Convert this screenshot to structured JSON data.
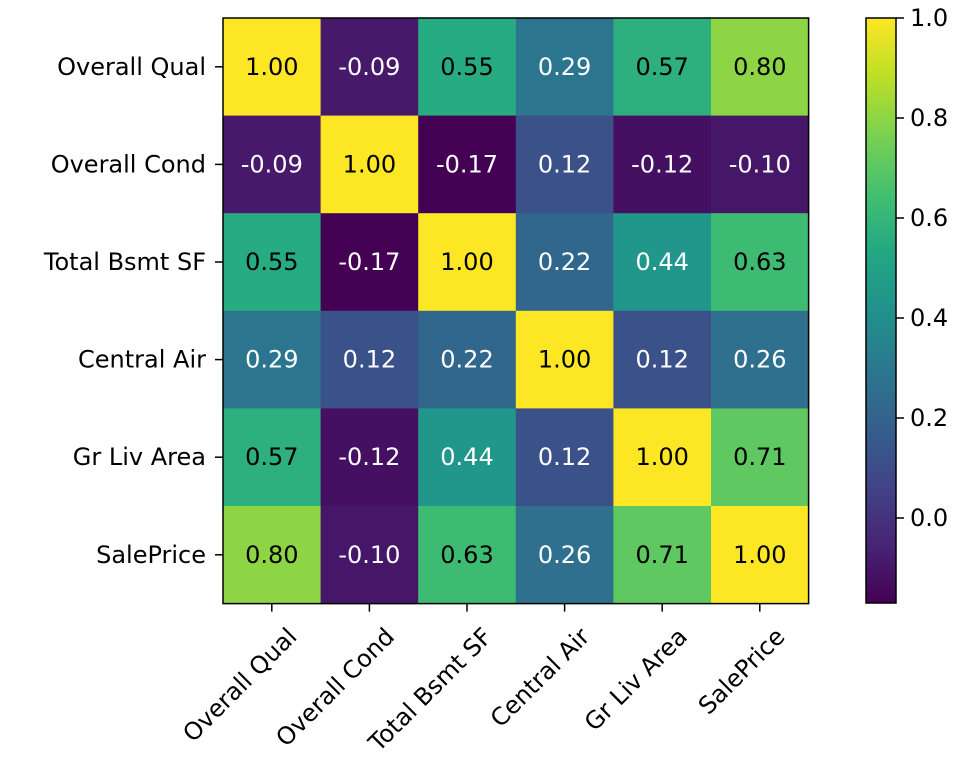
{
  "chart_data": {
    "type": "heatmap",
    "title": "",
    "xlabel": "",
    "ylabel": "",
    "x_categories": [
      "Overall Qual",
      "Overall Cond",
      "Total Bsmt SF",
      "Central Air",
      "Gr Liv Area",
      "SalePrice"
    ],
    "y_categories": [
      "Overall Qual",
      "Overall Cond",
      "Total Bsmt SF",
      "Central Air",
      "Gr Liv Area",
      "SalePrice"
    ],
    "values": [
      [
        1.0,
        -0.09,
        0.55,
        0.29,
        0.57,
        0.8
      ],
      [
        -0.09,
        1.0,
        -0.17,
        0.12,
        -0.12,
        -0.1
      ],
      [
        0.55,
        -0.17,
        1.0,
        0.22,
        0.44,
        0.63
      ],
      [
        0.29,
        0.12,
        0.22,
        1.0,
        0.12,
        0.26
      ],
      [
        0.57,
        -0.12,
        0.44,
        0.12,
        1.0,
        0.71
      ],
      [
        0.8,
        -0.1,
        0.63,
        0.26,
        0.71,
        1.0
      ]
    ],
    "cell_labels": [
      [
        "1.00",
        "-0.09",
        "0.55",
        "0.29",
        "0.57",
        "0.80"
      ],
      [
        "-0.09",
        "1.00",
        "-0.17",
        "0.12",
        "-0.12",
        "-0.10"
      ],
      [
        "0.55",
        "-0.17",
        "1.00",
        "0.22",
        "0.44",
        "0.63"
      ],
      [
        "0.29",
        "0.12",
        "0.22",
        "1.00",
        "0.12",
        "0.26"
      ],
      [
        "0.57",
        "-0.12",
        "0.44",
        "0.12",
        "1.00",
        "0.71"
      ],
      [
        "0.80",
        "-0.10",
        "0.63",
        "0.26",
        "0.71",
        "1.00"
      ]
    ],
    "colormap": "viridis",
    "vmin": -0.17,
    "vmax": 1.0,
    "colorbar_ticks": [
      0.0,
      0.2,
      0.4,
      0.6,
      0.8,
      1.0
    ],
    "colorbar_tick_labels": [
      "0.0",
      "0.2",
      "0.4",
      "0.6",
      "0.8",
      "1.0"
    ],
    "x_tick_rotation": 45
  }
}
